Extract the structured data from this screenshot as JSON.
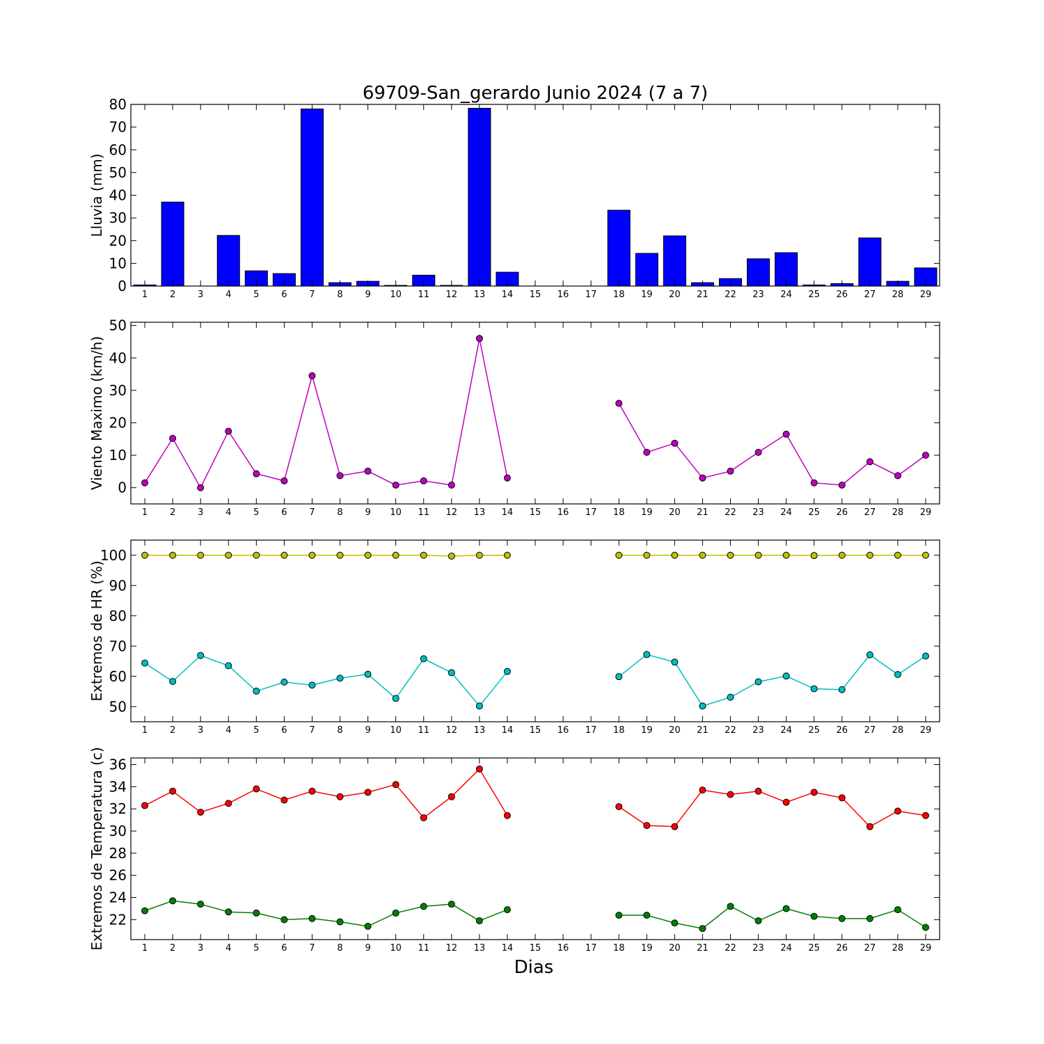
{
  "chart_data": [
    {
      "type": "bar",
      "title": "69709-San_gerardo Junio 2024  (7 a 7)",
      "ylabel": "Lluvia (mm)",
      "ylim": [
        0,
        80
      ],
      "yticks": [
        0,
        10,
        20,
        30,
        40,
        50,
        60,
        70,
        80
      ],
      "categories": [
        "1",
        "2",
        "3",
        "4",
        "5",
        "6",
        "7",
        "8",
        "9",
        "10",
        "11",
        "12",
        "13",
        "14",
        "15",
        "16",
        "17",
        "18",
        "19",
        "20",
        "21",
        "22",
        "23",
        "24",
        "25",
        "26",
        "27",
        "28",
        "29"
      ],
      "series": [
        {
          "color": "#0000ff",
          "values": [
            0.5,
            37,
            0,
            22.3,
            6.7,
            5.5,
            78,
            1.5,
            2.1,
            0.3,
            4.8,
            0.3,
            78.3,
            6.1,
            0,
            0,
            0,
            33.4,
            14.4,
            22.1,
            1.5,
            3.3,
            12,
            14.7,
            0.5,
            1.1,
            21.2,
            2.1,
            8
          ]
        }
      ]
    },
    {
      "type": "line",
      "ylabel": "Viento Maximo (km/h)",
      "ylim": [
        -5,
        51
      ],
      "yticks": [
        0,
        10,
        20,
        30,
        40,
        50
      ],
      "categories": [
        "1",
        "2",
        "3",
        "4",
        "5",
        "6",
        "7",
        "8",
        "9",
        "10",
        "11",
        "12",
        "13",
        "14",
        "15",
        "16",
        "17",
        "18",
        "19",
        "20",
        "21",
        "22",
        "23",
        "24",
        "25",
        "26",
        "27",
        "28",
        "29"
      ],
      "series": [
        {
          "color": "#bf00bf",
          "values": [
            1.5,
            15.2,
            0,
            17.4,
            4.3,
            2.1,
            34.5,
            3.7,
            5.1,
            0.8,
            2.1,
            0.8,
            46,
            3,
            null,
            null,
            null,
            26,
            10.9,
            13.7,
            3,
            5.1,
            10.9,
            16.5,
            1.5,
            0.8,
            8,
            3.7,
            10
          ]
        }
      ]
    },
    {
      "type": "line",
      "ylabel": "Extremos de HR (%)",
      "ylim": [
        45,
        105
      ],
      "yticks": [
        50,
        60,
        70,
        80,
        90,
        100
      ],
      "categories": [
        "1",
        "2",
        "3",
        "4",
        "5",
        "6",
        "7",
        "8",
        "9",
        "10",
        "11",
        "12",
        "13",
        "14",
        "15",
        "16",
        "17",
        "18",
        "19",
        "20",
        "21",
        "22",
        "23",
        "24",
        "25",
        "26",
        "27",
        "28",
        "29"
      ],
      "series": [
        {
          "color": "#bfbf00",
          "values": [
            100,
            100,
            100,
            100,
            100,
            100,
            100,
            100,
            100,
            100,
            100,
            99.7,
            100,
            100,
            null,
            null,
            null,
            100,
            100,
            100,
            100,
            100,
            100,
            100,
            99.9,
            100,
            100,
            100,
            100
          ]
        },
        {
          "color": "#00bfbf",
          "values": [
            64.4,
            58.3,
            66.9,
            63.5,
            55.1,
            58.1,
            57.1,
            59.4,
            60.7,
            52.7,
            65.8,
            61.2,
            50.2,
            61.6,
            null,
            null,
            null,
            59.9,
            67.2,
            64.7,
            50.2,
            53.1,
            58.2,
            60.1,
            55.9,
            55.6,
            67.1,
            60.6,
            66.7
          ]
        }
      ]
    },
    {
      "type": "line",
      "ylabel": "Extremos de Temperatura (c)",
      "xlabel": "Dias",
      "ylim": [
        20.2,
        36.6
      ],
      "yticks": [
        22,
        24,
        26,
        28,
        30,
        32,
        34,
        36
      ],
      "categories": [
        "1",
        "2",
        "3",
        "4",
        "5",
        "6",
        "7",
        "8",
        "9",
        "10",
        "11",
        "12",
        "13",
        "14",
        "15",
        "16",
        "17",
        "18",
        "19",
        "20",
        "21",
        "22",
        "23",
        "24",
        "25",
        "26",
        "27",
        "28",
        "29"
      ],
      "series": [
        {
          "color": "#ff0000",
          "values": [
            32.3,
            33.6,
            31.7,
            32.5,
            33.8,
            32.8,
            33.6,
            33.1,
            33.5,
            34.2,
            31.2,
            33.1,
            35.6,
            31.4,
            null,
            null,
            null,
            32.2,
            30.5,
            30.4,
            33.7,
            33.3,
            33.6,
            32.6,
            33.5,
            33,
            30.4,
            31.8,
            31.4
          ]
        },
        {
          "color": "#008000",
          "values": [
            22.8,
            23.7,
            23.4,
            22.7,
            22.6,
            22,
            22.1,
            21.8,
            21.4,
            22.6,
            23.2,
            23.4,
            21.9,
            22.9,
            null,
            null,
            null,
            22.4,
            22.4,
            21.7,
            21.2,
            23.2,
            21.9,
            23,
            22.3,
            22.1,
            22.1,
            22.9,
            21.3
          ]
        }
      ]
    }
  ]
}
